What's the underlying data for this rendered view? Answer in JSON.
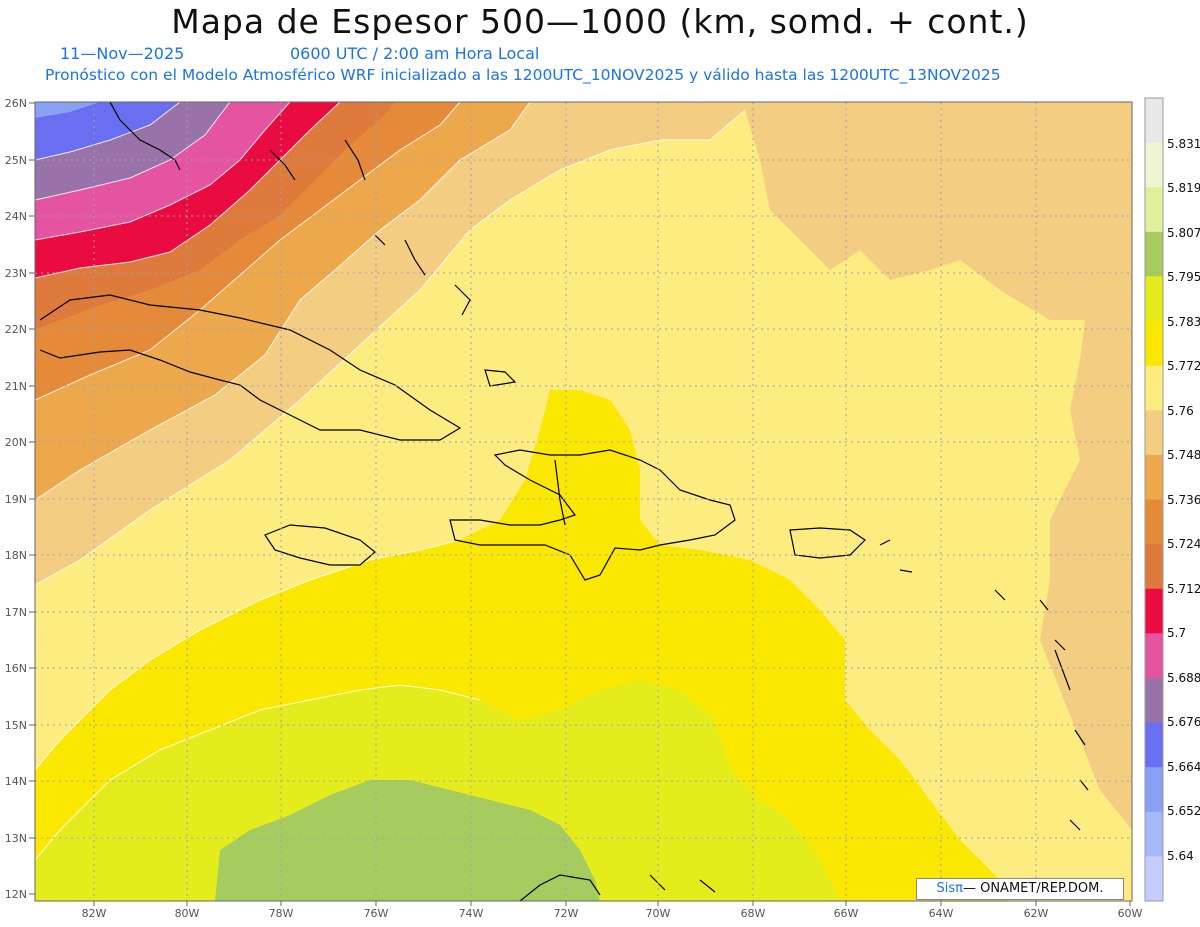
{
  "header": {
    "title": "Mapa de Espesor 500—1000 (km, somd. + cont.)",
    "date": "11—Nov—2025",
    "time": "0600 UTC / 2:00 am Hora Local",
    "description": "Pronóstico con el Modelo Atmosférico WRF inicializado a las 1200UTC_10NOV2025 y válido hasta las  1200UTC_13NOV2025"
  },
  "map": {
    "lat_labels": [
      "26N",
      "25N",
      "24N",
      "23N",
      "22N",
      "21N",
      "20N",
      "19N",
      "18N",
      "17N",
      "16N",
      "15N",
      "14N",
      "13N",
      "12N"
    ],
    "lon_labels": [
      "82W",
      "80W",
      "78W",
      "76W",
      "74W",
      "72W",
      "70W",
      "68W",
      "66W",
      "64W",
      "62W",
      "60W"
    ]
  },
  "colorbar": {
    "labels": [
      "5.831",
      "5.819",
      "5.807",
      "5.795",
      "5.783",
      "5.772",
      "5.76",
      "5.748",
      "5.736",
      "5.724",
      "5.712",
      "5.7",
      "5.688",
      "5.676",
      "5.664",
      "5.652",
      "5.64"
    ],
    "colors": [
      "#e8e8e8",
      "#eef5d2",
      "#dff29a",
      "#a6cc60",
      "#e4ec1c",
      "#fbe800",
      "#fdec80",
      "#f2cd82",
      "#eea84c",
      "#e48a38",
      "#dd7a3c",
      "#ea0b40",
      "#e454a0",
      "#9a72aa",
      "#6a6ef0",
      "#8aa0f4",
      "#a6b8f8",
      "#c4ccfa"
    ]
  },
  "credit": {
    "brand": "Sisπ",
    "text": "— ONAMET/REP.DOM."
  }
}
